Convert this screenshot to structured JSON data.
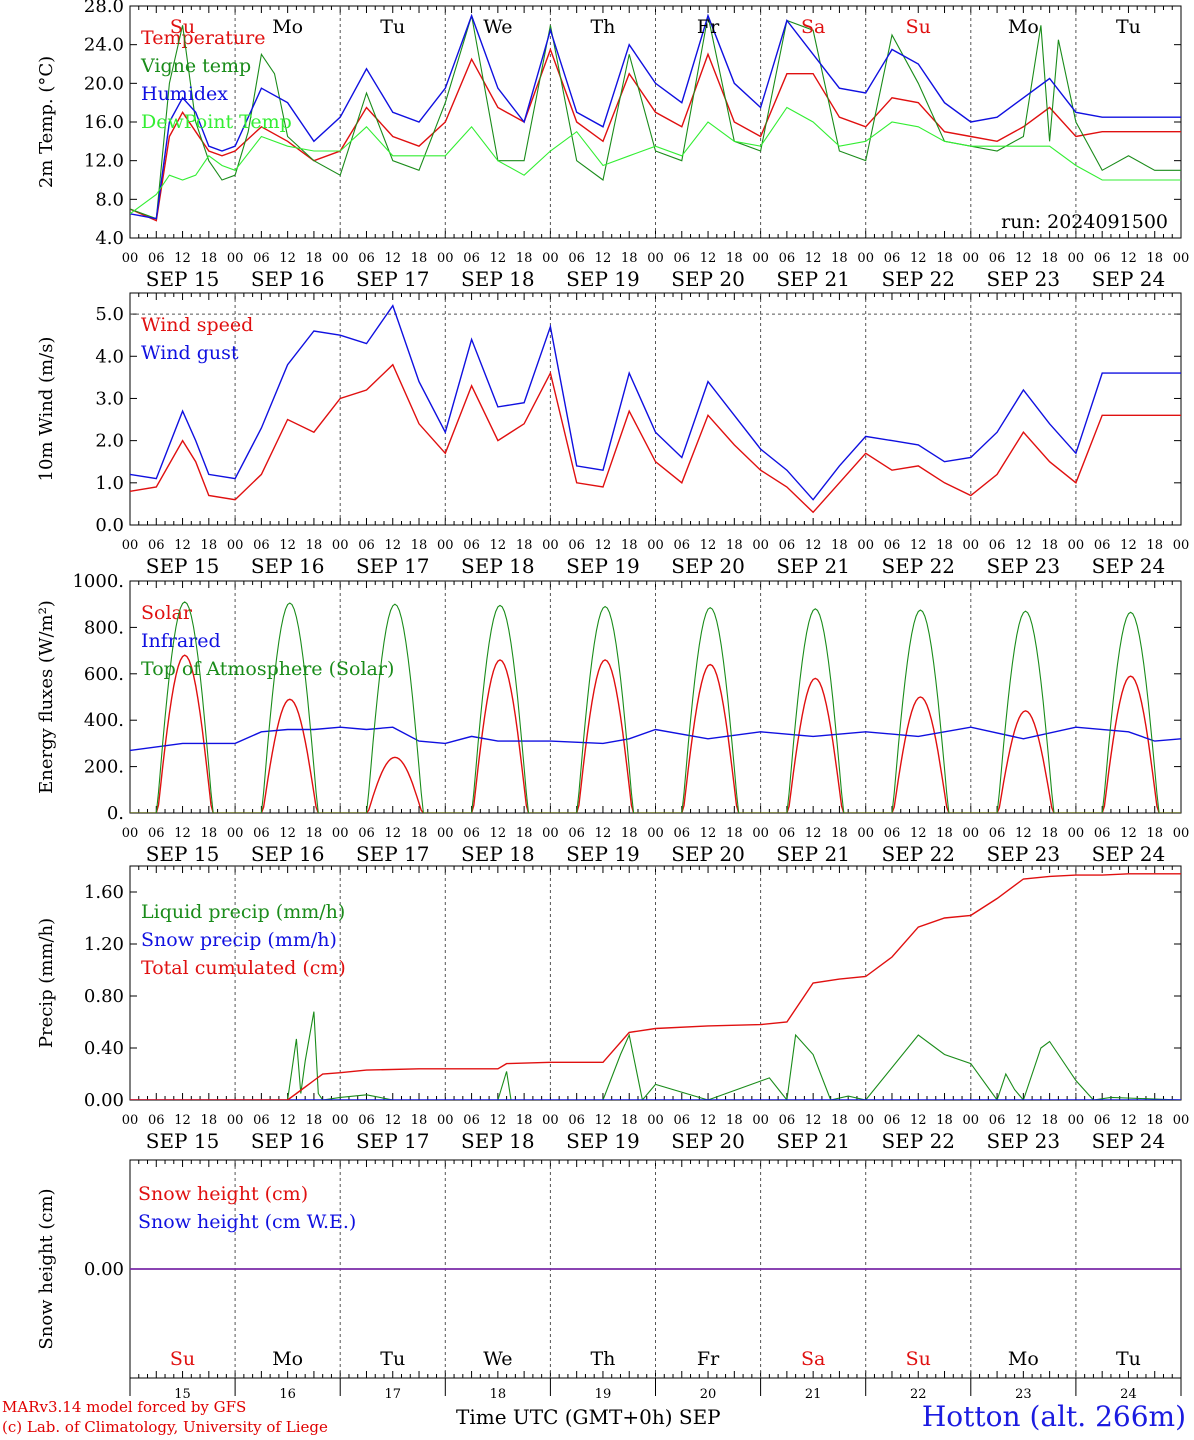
{
  "run_label": "run: 2024091500",
  "days": {
    "weekdays": [
      "Su",
      "Mo",
      "Tu",
      "We",
      "Th",
      "Fr",
      "Sa",
      "Su",
      "Mo",
      "Tu"
    ],
    "weekend_flags": [
      true,
      false,
      false,
      false,
      false,
      false,
      true,
      true,
      false,
      false
    ],
    "dates": [
      "SEP 15",
      "SEP 16",
      "SEP 17",
      "SEP 18",
      "SEP 19",
      "SEP 20",
      "SEP 21",
      "SEP 22",
      "SEP 23",
      "SEP 24"
    ],
    "day_numbers": [
      "15",
      "16",
      "17",
      "18",
      "19",
      "20",
      "21",
      "22",
      "23",
      "24"
    ],
    "hour_ticks": [
      "00",
      "06",
      "12",
      "18"
    ],
    "end_hour": "00"
  },
  "colors": {
    "red": "#e01010",
    "darkgreen": "#1a8c1a",
    "blue": "#1010e0",
    "lightgreen": "#33ee33",
    "purple": "#7a2aa8"
  },
  "footer": {
    "credit_line1": "MARv3.14 model forced by GFS",
    "credit_line2": "(c) Lab. of Climatology, University of Liege",
    "xaxis_title": "Time UTC (GMT+0h)",
    "month": "SEP",
    "station": "Hotton (alt. 266m)"
  },
  "chart_data": [
    {
      "id": "temperature",
      "type": "line",
      "ylabel": "2m Temp. (°C)",
      "ylim": [
        4,
        28
      ],
      "yticks": [
        "4.0",
        "8.0",
        "12.0",
        "16.0",
        "20.0",
        "24.0",
        "28.0"
      ],
      "ref_line": null,
      "x_unit": "hours since Sep 15 00 UTC",
      "series": [
        {
          "name": "Temperature",
          "color": "red",
          "x": [
            0,
            6,
            9,
            12,
            15,
            18,
            21,
            24,
            30,
            36,
            42,
            48,
            54,
            60,
            66,
            72,
            78,
            84,
            90,
            96,
            102,
            108,
            114,
            120,
            126,
            132,
            138,
            144,
            150,
            156,
            162,
            168,
            174,
            180,
            186,
            192,
            198,
            204,
            210,
            216,
            222,
            228,
            234,
            240
          ],
          "y": [
            7.0,
            5.8,
            14.5,
            17.0,
            15.0,
            13.0,
            12.5,
            13.0,
            15.5,
            14.0,
            12.0,
            13.0,
            17.5,
            14.5,
            13.5,
            16.0,
            22.5,
            17.5,
            16.0,
            23.5,
            16.0,
            14.0,
            21.0,
            17.0,
            15.5,
            23.0,
            16.0,
            14.5,
            21.0,
            21.0,
            16.5,
            15.5,
            18.5,
            18.0,
            15.0,
            14.5,
            14.0,
            15.5,
            17.5,
            14.5,
            15.0,
            15.0,
            15.0,
            15.0
          ]
        },
        {
          "name": "Vigne temp",
          "color": "darkgreen",
          "x": [
            0,
            6,
            9,
            12,
            15,
            18,
            21,
            24,
            27,
            30,
            33,
            36,
            42,
            48,
            54,
            60,
            66,
            72,
            78,
            84,
            90,
            96,
            102,
            108,
            114,
            120,
            126,
            132,
            138,
            144,
            150,
            156,
            162,
            168,
            174,
            180,
            186,
            192,
            198,
            204,
            208,
            210,
            212,
            216,
            222,
            228,
            234,
            240
          ],
          "y": [
            7.0,
            6.0,
            20.0,
            26.0,
            16.0,
            12.0,
            10.0,
            10.5,
            15.0,
            23.0,
            21.0,
            14.5,
            12.0,
            10.5,
            19.0,
            12.0,
            11.0,
            18.0,
            27.0,
            12.0,
            12.0,
            26.0,
            12.0,
            10.0,
            23.0,
            13.0,
            12.0,
            27.0,
            14.0,
            13.0,
            26.5,
            25.5,
            13.0,
            12.0,
            25.0,
            20.0,
            14.0,
            13.5,
            13.0,
            14.5,
            26.0,
            14.0,
            24.5,
            16.0,
            11.0,
            12.5,
            11.0,
            11.0
          ]
        },
        {
          "name": "Humidex",
          "color": "blue",
          "x": [
            0,
            6,
            9,
            12,
            15,
            18,
            21,
            24,
            30,
            36,
            42,
            48,
            54,
            60,
            66,
            72,
            78,
            84,
            90,
            96,
            102,
            108,
            114,
            120,
            126,
            132,
            138,
            144,
            150,
            156,
            162,
            168,
            174,
            180,
            186,
            192,
            198,
            204,
            210,
            216,
            222,
            228,
            234,
            240
          ],
          "y": [
            6.5,
            6.0,
            16.0,
            18.5,
            17.0,
            13.5,
            13.0,
            13.5,
            19.5,
            18.0,
            14.0,
            16.5,
            21.5,
            17.0,
            16.0,
            19.5,
            27.0,
            19.5,
            16.0,
            25.5,
            17.0,
            15.5,
            24.0,
            20.0,
            18.0,
            27.0,
            20.0,
            17.5,
            26.5,
            23.0,
            19.5,
            19.0,
            23.5,
            22.0,
            18.0,
            16.0,
            16.5,
            18.5,
            20.5,
            17.0,
            16.5,
            16.5,
            16.5,
            16.5
          ]
        },
        {
          "name": "DewPoint Temp",
          "color": "lightgreen",
          "x": [
            0,
            6,
            9,
            12,
            15,
            18,
            21,
            24,
            30,
            36,
            42,
            48,
            54,
            60,
            66,
            72,
            78,
            84,
            90,
            96,
            102,
            108,
            114,
            120,
            126,
            132,
            138,
            144,
            150,
            156,
            162,
            168,
            174,
            180,
            186,
            192,
            198,
            204,
            210,
            216,
            222,
            228,
            234,
            240
          ],
          "y": [
            6.5,
            8.5,
            10.5,
            10.0,
            10.5,
            12.5,
            11.5,
            11.0,
            14.5,
            13.5,
            13.0,
            13.0,
            15.5,
            12.5,
            12.5,
            12.5,
            15.5,
            12.0,
            10.5,
            13.0,
            15.0,
            11.5,
            12.5,
            13.5,
            12.5,
            16.0,
            14.0,
            13.5,
            17.5,
            16.0,
            13.5,
            14.0,
            16.0,
            15.5,
            14.0,
            13.5,
            13.5,
            13.5,
            13.5,
            11.5,
            10.0,
            10.0,
            10.0,
            10.0
          ]
        }
      ]
    },
    {
      "id": "wind",
      "type": "line",
      "ylabel": "10m Wind (m/s)",
      "ylim": [
        0,
        5.5
      ],
      "yticks": [
        "0.0",
        "1.0",
        "2.0",
        "3.0",
        "4.0",
        "5.0"
      ],
      "ref_line": 5.0,
      "x_unit": "hours since Sep 15 00 UTC",
      "series": [
        {
          "name": "Wind speed",
          "color": "red",
          "x": [
            0,
            6,
            12,
            15,
            18,
            24,
            30,
            36,
            42,
            48,
            54,
            60,
            66,
            72,
            78,
            84,
            90,
            96,
            102,
            108,
            114,
            120,
            126,
            132,
            138,
            144,
            150,
            156,
            162,
            168,
            174,
            180,
            186,
            192,
            198,
            204,
            210,
            216,
            222,
            228,
            234,
            240
          ],
          "y": [
            0.8,
            0.9,
            2.0,
            1.5,
            0.7,
            0.6,
            1.2,
            2.5,
            2.2,
            3.0,
            3.2,
            3.8,
            2.4,
            1.7,
            3.3,
            2.0,
            2.4,
            3.6,
            1.0,
            0.9,
            2.7,
            1.5,
            1.0,
            2.6,
            1.9,
            1.3,
            0.9,
            0.3,
            1.0,
            1.7,
            1.3,
            1.4,
            1.0,
            0.7,
            1.2,
            2.2,
            1.5,
            1.0,
            2.6,
            2.6,
            2.6,
            2.6
          ]
        },
        {
          "name": "Wind gust",
          "color": "blue",
          "x": [
            0,
            6,
            12,
            15,
            18,
            24,
            30,
            36,
            42,
            48,
            54,
            60,
            66,
            72,
            78,
            84,
            90,
            96,
            102,
            108,
            114,
            120,
            126,
            132,
            138,
            144,
            150,
            156,
            162,
            168,
            174,
            180,
            186,
            192,
            198,
            204,
            210,
            216,
            222,
            228,
            234,
            240
          ],
          "y": [
            1.2,
            1.1,
            2.7,
            2.0,
            1.2,
            1.1,
            2.3,
            3.8,
            4.6,
            4.5,
            4.3,
            5.2,
            3.4,
            2.2,
            4.4,
            2.8,
            2.9,
            4.7,
            1.4,
            1.3,
            3.6,
            2.2,
            1.6,
            3.4,
            2.6,
            1.8,
            1.3,
            0.6,
            1.4,
            2.1,
            2.0,
            1.9,
            1.5,
            1.6,
            2.2,
            3.2,
            2.4,
            1.7,
            3.6,
            3.6,
            3.6,
            3.6
          ]
        }
      ]
    },
    {
      "id": "energy",
      "type": "line",
      "ylabel": "Energy fluxes (W/m²)",
      "ylim": [
        0,
        1000
      ],
      "yticks": [
        "0.",
        "200.",
        "400.",
        "600.",
        "800.",
        "1000."
      ],
      "ref_line": null,
      "x_unit": "hours since Sep 15 00 UTC",
      "series": [
        {
          "name": "Solar",
          "color": "red",
          "peak_hour": 12.5,
          "half_width": 6.2,
          "daily_peaks": [
            680,
            490,
            240,
            660,
            660,
            640,
            580,
            500,
            440,
            590
          ]
        },
        {
          "name": "Infrared",
          "color": "blue",
          "x": [
            0,
            12,
            24,
            30,
            36,
            42,
            48,
            54,
            60,
            66,
            72,
            78,
            84,
            96,
            108,
            114,
            120,
            132,
            144,
            156,
            168,
            180,
            192,
            204,
            216,
            228,
            234,
            240
          ],
          "y": [
            270,
            300,
            300,
            350,
            360,
            360,
            370,
            360,
            370,
            310,
            300,
            330,
            310,
            310,
            300,
            320,
            360,
            320,
            350,
            330,
            350,
            330,
            370,
            320,
            370,
            350,
            310,
            320
          ]
        },
        {
          "name": "Top of Atmosphere (Solar)",
          "color": "darkgreen",
          "peak_hour": 12.5,
          "half_width": 6.4,
          "daily_peaks": [
            910,
            905,
            900,
            895,
            890,
            885,
            880,
            875,
            870,
            865
          ]
        }
      ]
    },
    {
      "id": "precip",
      "type": "line",
      "ylabel": "Precip (mm/h)",
      "ylim": [
        0,
        1.8
      ],
      "yticks": [
        "0.00",
        "0.40",
        "0.80",
        "1.20",
        "1.60"
      ],
      "ref_line": null,
      "x_unit": "hours since Sep 15 00 UTC",
      "series": [
        {
          "name": "Liquid precip (mm/h)",
          "color": "darkgreen",
          "x": [
            0,
            36,
            38,
            39,
            40,
            42,
            43,
            44,
            48,
            54,
            60,
            72,
            84,
            86,
            87,
            90,
            108,
            112,
            114,
            117,
            120,
            132,
            146,
            150,
            152,
            156,
            160,
            164,
            168,
            180,
            186,
            192,
            198,
            200,
            202,
            204,
            208,
            210,
            212,
            216,
            220,
            224,
            240
          ],
          "y": [
            0,
            0,
            0.47,
            0.05,
            0.3,
            0.68,
            0.05,
            0,
            0.02,
            0.04,
            0,
            0,
            0,
            0.22,
            0,
            0,
            0,
            0.35,
            0.5,
            0,
            0.12,
            0,
            0.17,
            0.0,
            0.5,
            0.35,
            0,
            0.03,
            0,
            0.5,
            0.35,
            0.28,
            0.0,
            0.2,
            0.08,
            0,
            0.4,
            0.45,
            0.35,
            0.15,
            0,
            0.02,
            0
          ]
        },
        {
          "name": "Snow precip (mm/h)",
          "color": "blue",
          "x": [
            0,
            240
          ],
          "y": [
            0,
            0
          ]
        },
        {
          "name": "Total cumulated (cm)",
          "color": "red",
          "x": [
            0,
            36,
            38,
            40,
            42,
            44,
            48,
            54,
            66,
            84,
            86,
            96,
            108,
            114,
            120,
            132,
            144,
            150,
            156,
            162,
            168,
            174,
            180,
            186,
            192,
            198,
            204,
            210,
            216,
            222,
            228,
            234,
            240
          ],
          "y": [
            0,
            0,
            0.05,
            0.1,
            0.15,
            0.2,
            0.21,
            0.23,
            0.24,
            0.24,
            0.28,
            0.29,
            0.29,
            0.52,
            0.55,
            0.57,
            0.58,
            0.6,
            0.9,
            0.93,
            0.95,
            1.1,
            1.33,
            1.4,
            1.42,
            1.55,
            1.7,
            1.72,
            1.73,
            1.73,
            1.74,
            1.74,
            1.74
          ]
        }
      ]
    },
    {
      "id": "snow",
      "type": "line",
      "ylabel": "Snow height (cm)",
      "ylim": [
        -1,
        1
      ],
      "yticks": [
        "0.00"
      ],
      "ref_line": null,
      "x_unit": "hours since Sep 15 00 UTC",
      "series": [
        {
          "name": "Snow height (cm)",
          "color": "red",
          "x": [
            0,
            240
          ],
          "y": [
            0,
            0
          ]
        },
        {
          "name": "Snow height (cm W.E.)",
          "color": "blue",
          "x": [
            0,
            240
          ],
          "y": [
            0,
            0
          ]
        }
      ]
    }
  ]
}
